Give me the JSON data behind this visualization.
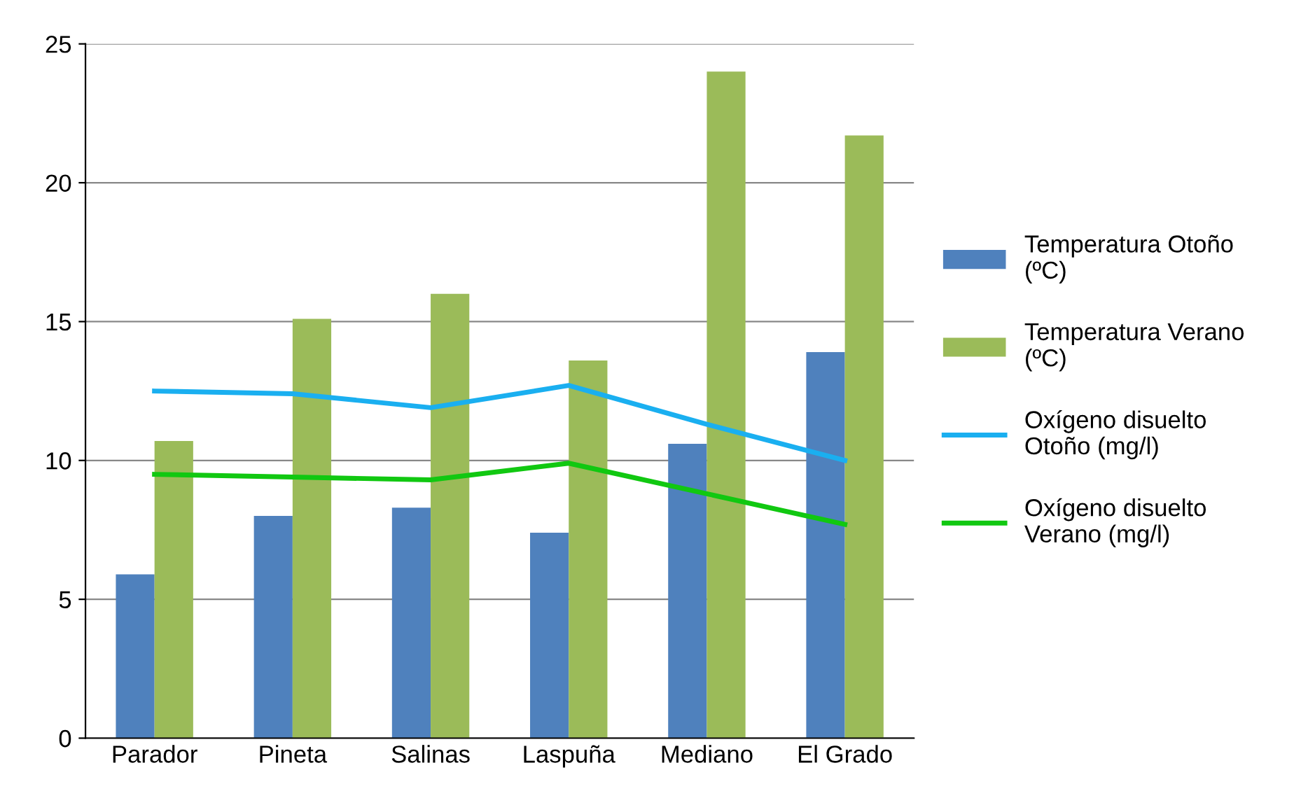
{
  "chart_data": {
    "type": "bar",
    "categories": [
      "Parador",
      "Pineta",
      "Salinas",
      "Laspuña",
      "Mediano",
      "El Grado"
    ],
    "series": [
      {
        "name": "Temperatura Otoño\n(ºC)",
        "color": "#4f81bd",
        "values": [
          5.9,
          8.0,
          8.3,
          7.4,
          10.6,
          13.9
        ]
      },
      {
        "name": "Temperatura Verano\n(ºC)",
        "color": "#9bbb59",
        "values": [
          10.7,
          15.1,
          16.0,
          13.6,
          24.0,
          21.7
        ]
      },
      {
        "name": "Oxígeno disuelto\nOtoño (mg/l)",
        "type": "line",
        "color": "#1aaff0",
        "values": [
          12.5,
          12.4,
          11.9,
          12.7,
          11.3,
          10.0
        ]
      },
      {
        "name": "Oxígeno disuelto\nVerano (mg/l)",
        "type": "line",
        "color": "#11c811",
        "values": [
          9.5,
          9.4,
          9.3,
          9.9,
          8.8,
          7.7
        ]
      }
    ],
    "ylim": [
      0,
      25
    ],
    "yticks": [
      0,
      5,
      10,
      15,
      20,
      25
    ],
    "grid": "y",
    "legend": "right",
    "marker": "none",
    "line_style": "solid"
  }
}
